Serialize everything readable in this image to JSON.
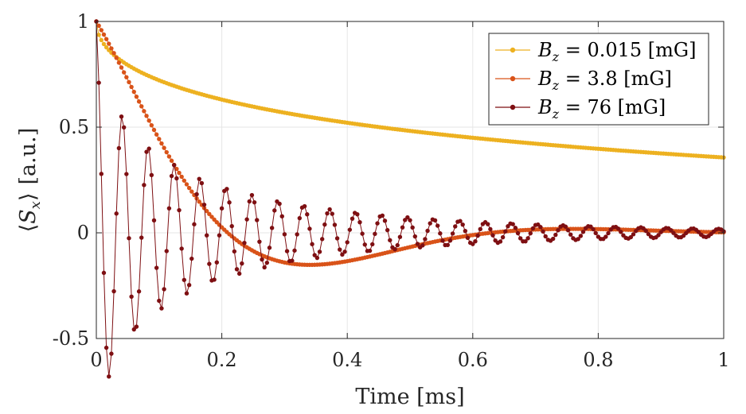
{
  "chart_data": {
    "type": "line",
    "title": "",
    "xlabel": "Time [ms]",
    "ylabel_parts": {
      "open": "⟨",
      "symbol": "S",
      "subscript": "x",
      "close": "⟩",
      "unit": "[a.u.]"
    },
    "xlim": [
      0,
      1
    ],
    "ylim": [
      -0.5,
      1
    ],
    "xticks": [
      0,
      0.2,
      0.4,
      0.6,
      0.8,
      1
    ],
    "xtick_labels": [
      "0",
      "0.2",
      "0.4",
      "0.6",
      "0.8",
      "1"
    ],
    "yticks": [
      -0.5,
      0,
      0.5,
      1
    ],
    "ytick_labels": [
      "-0.5",
      "0",
      "0.5",
      "1"
    ],
    "grid": true,
    "legend_position": "top-right",
    "sample_step_ms": 0.004,
    "series": [
      {
        "name": "B_z = 0.015 [mG]",
        "legend": {
          "symbol": "B",
          "subscript": "z",
          "rest": " = 0.015 [mG]"
        },
        "color": "#EDB120",
        "marker": "dot",
        "model": "stretched-decay",
        "params": {
          "amplitude": 1.0,
          "tau_ms": 0.94,
          "exponent": 0.5,
          "omega_rad_per_ms": 0.0
        }
      },
      {
        "name": "B_z = 3.8 [mG]",
        "legend": {
          "symbol": "B",
          "subscript": "z",
          "rest": " = 3.8 [mG]"
        },
        "color": "#D95319",
        "marker": "dot",
        "model": "damped-cosine",
        "params": {
          "amplitude": 1.0,
          "tau_ms": 0.2,
          "exponent": 1.0,
          "omega_rad_per_ms": 7.5
        }
      },
      {
        "name": "B_z = 76 [mG]",
        "legend": {
          "symbol": "B",
          "subscript": "z",
          "rest": " = 76 [mG]"
        },
        "color": "#7E0F12",
        "marker": "dot",
        "model": "damped-cosine",
        "params": {
          "amplitude": 1.0,
          "tau_ms": 0.1,
          "exponent": 0.6,
          "omega_rad_per_ms": 152.0
        }
      }
    ]
  }
}
